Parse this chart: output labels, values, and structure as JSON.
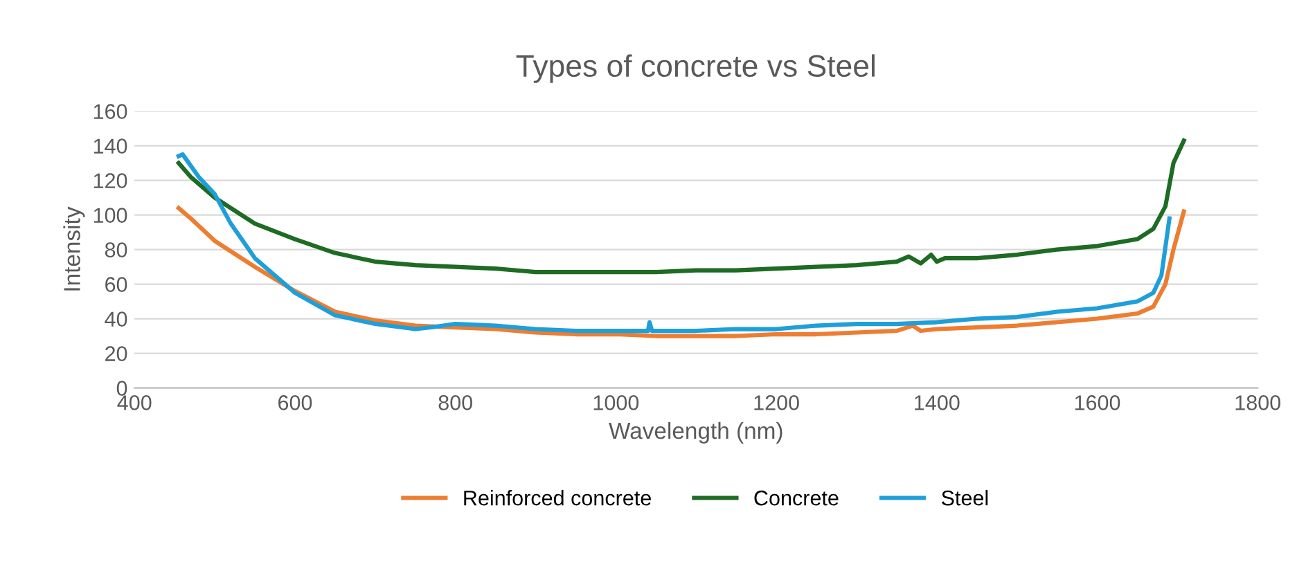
{
  "chart_data": {
    "type": "line",
    "title": "Types of concrete vs Steel",
    "xlabel": "Wavelength (nm)",
    "ylabel": "Intensity",
    "xlim": [
      400,
      1800
    ],
    "xticks": [
      400,
      600,
      800,
      1000,
      1200,
      1400,
      1600,
      1800
    ],
    "ylim": [
      0,
      160
    ],
    "yticks": [
      0,
      20,
      40,
      60,
      80,
      100,
      120,
      140,
      160
    ],
    "grid": "y",
    "legend": "bottom",
    "marker": "none",
    "line_style": "solid",
    "series": [
      {
        "name": "Reinforced concrete",
        "color": "#ed7d31",
        "x": [
          455,
          470,
          500,
          550,
          600,
          650,
          700,
          750,
          800,
          850,
          900,
          950,
          1000,
          1050,
          1100,
          1150,
          1200,
          1250,
          1300,
          1350,
          1370,
          1380,
          1400,
          1450,
          1500,
          1550,
          1600,
          1650,
          1670,
          1685,
          1695,
          1708
        ],
        "values": [
          104,
          98,
          85,
          70,
          56,
          44,
          39,
          36,
          35,
          34,
          32,
          31,
          31,
          30,
          30,
          30,
          31,
          31,
          32,
          33,
          36,
          33,
          34,
          35,
          36,
          38,
          40,
          43,
          47,
          60,
          80,
          102
        ]
      },
      {
        "name": "Concrete",
        "color": "#1e6b24",
        "x": [
          455,
          470,
          500,
          550,
          600,
          650,
          700,
          750,
          800,
          850,
          900,
          950,
          1000,
          1050,
          1100,
          1150,
          1200,
          1250,
          1300,
          1350,
          1365,
          1380,
          1393,
          1400,
          1410,
          1450,
          1500,
          1550,
          1600,
          1650,
          1670,
          1685,
          1695,
          1708
        ],
        "values": [
          130,
          122,
          110,
          95,
          86,
          78,
          73,
          71,
          70,
          69,
          67,
          67,
          67,
          67,
          68,
          68,
          69,
          70,
          71,
          73,
          76,
          72,
          77,
          73,
          75,
          75,
          77,
          80,
          82,
          86,
          92,
          105,
          130,
          143
        ]
      },
      {
        "name": "Steel",
        "color": "#1f9fd9",
        "x": [
          455,
          460,
          480,
          500,
          520,
          550,
          600,
          650,
          700,
          750,
          770,
          800,
          850,
          900,
          950,
          1000,
          1040,
          1042,
          1045,
          1100,
          1150,
          1200,
          1250,
          1300,
          1350,
          1400,
          1450,
          1500,
          1550,
          1600,
          1650,
          1670,
          1680,
          1690
        ],
        "values": [
          134,
          135,
          122,
          112,
          95,
          75,
          55,
          42,
          37,
          34,
          35,
          37,
          36,
          34,
          33,
          33,
          33,
          38,
          33,
          33,
          34,
          34,
          36,
          37,
          37,
          38,
          40,
          41,
          44,
          46,
          50,
          55,
          65,
          98
        ]
      }
    ]
  }
}
